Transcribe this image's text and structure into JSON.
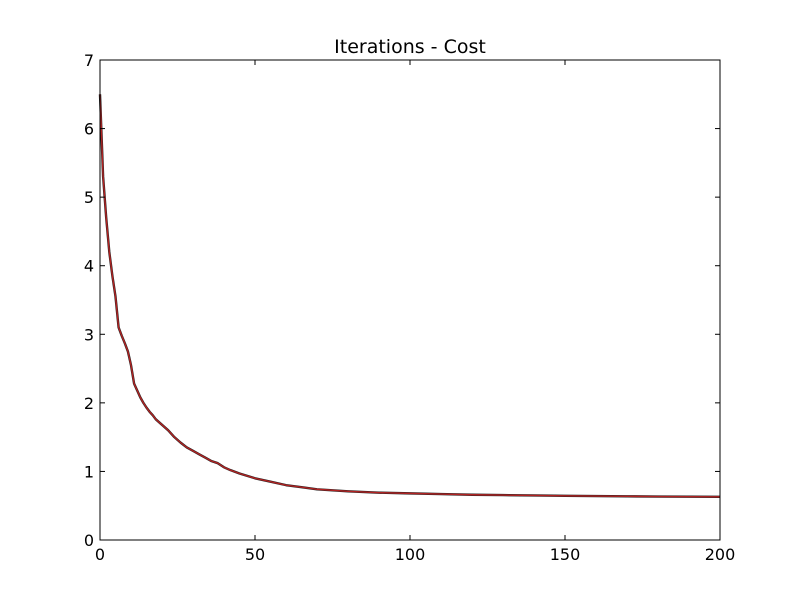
{
  "chart_data": {
    "type": "line",
    "title": "Iterations - Cost",
    "xlabel": "",
    "ylabel": "",
    "xlim": [
      0,
      200
    ],
    "ylim": [
      0,
      7
    ],
    "x_ticks": [
      0,
      50,
      100,
      150,
      200
    ],
    "y_ticks": [
      0,
      1,
      2,
      3,
      4,
      5,
      6,
      7
    ],
    "grid": false,
    "legend": "none",
    "series": [
      {
        "color": "#b22222",
        "x": [
          0,
          1,
          2,
          3,
          4,
          5,
          6,
          7,
          8,
          9,
          10,
          11,
          12,
          13,
          14,
          15,
          16,
          17,
          18,
          19,
          20,
          22,
          24,
          26,
          28,
          30,
          32,
          34,
          36,
          38,
          40,
          42,
          45,
          50,
          55,
          60,
          65,
          70,
          80,
          90,
          100,
          110,
          120,
          130,
          140,
          150,
          160,
          170,
          180,
          190,
          200
        ],
        "y": [
          6.5,
          5.3,
          4.7,
          4.2,
          3.85,
          3.55,
          3.1,
          2.98,
          2.87,
          2.75,
          2.55,
          2.28,
          2.18,
          2.08,
          2.0,
          1.93,
          1.87,
          1.82,
          1.76,
          1.72,
          1.68,
          1.6,
          1.5,
          1.42,
          1.35,
          1.3,
          1.25,
          1.2,
          1.15,
          1.12,
          1.06,
          1.02,
          0.97,
          0.9,
          0.85,
          0.8,
          0.77,
          0.74,
          0.71,
          0.69,
          0.68,
          0.67,
          0.66,
          0.655,
          0.65,
          0.645,
          0.64,
          0.637,
          0.634,
          0.632,
          0.63
        ]
      }
    ]
  }
}
